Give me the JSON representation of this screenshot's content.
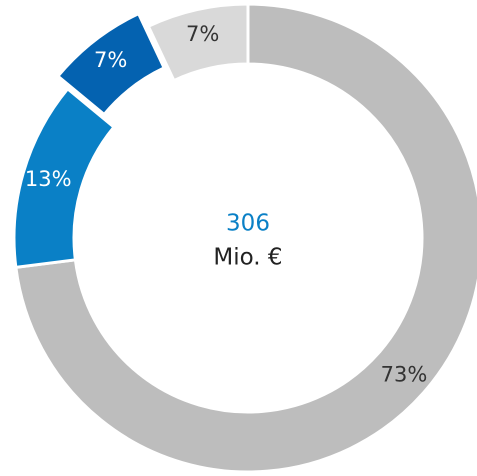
{
  "chart_data": {
    "type": "donut",
    "categories": [
      null,
      null,
      null,
      null
    ],
    "values": [
      73,
      13,
      7,
      7
    ],
    "value_labels": [
      "73%",
      "13%",
      "7%",
      "7%"
    ],
    "colors": [
      "#bdbdbd",
      "#0a80c6",
      "#0462b0",
      "#d9d9d9"
    ],
    "label_colors": [
      "#333333",
      "#ffffff",
      "#ffffff",
      "#333333"
    ],
    "exploded": [
      false,
      false,
      true,
      false
    ],
    "center_value": "306",
    "center_unit": "Mio. €",
    "center_value_color": "#0a80c6"
  }
}
